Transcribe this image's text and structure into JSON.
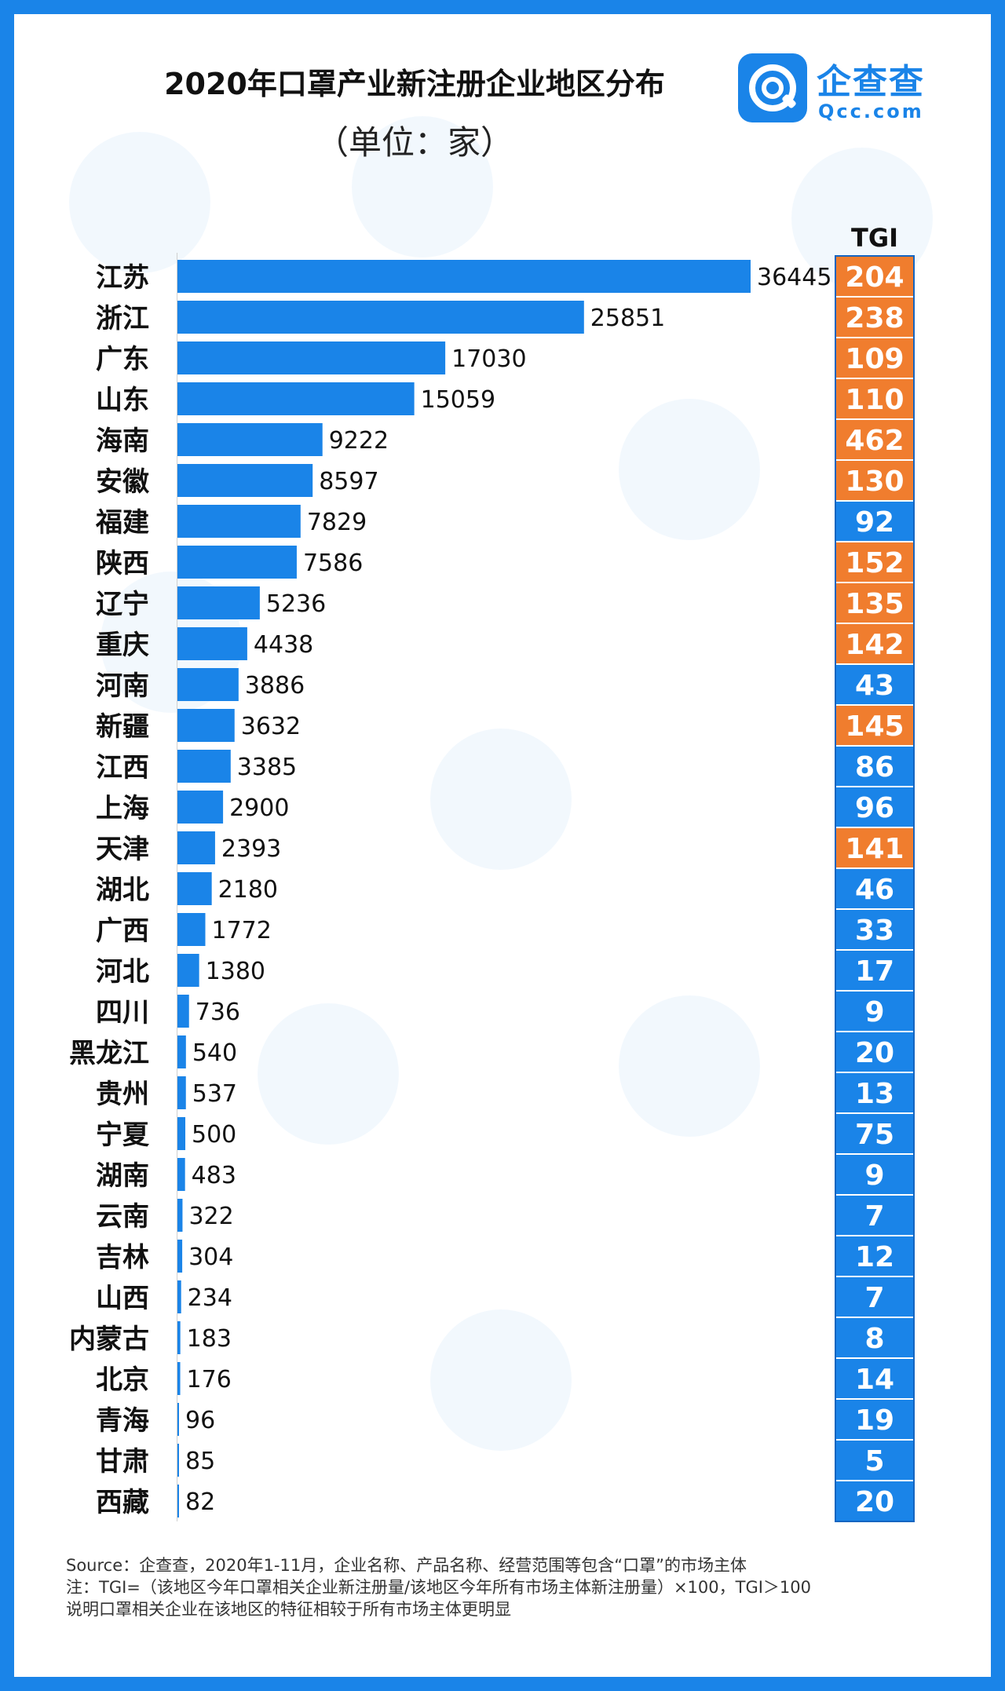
{
  "title": "2020年口罩产业新注册企业地区分布",
  "subtitle": "（单位：家）",
  "logo": {
    "cn": "企查查",
    "en": "Qcc.com",
    "icon": "qcc-logo-icon",
    "color": "#1a84e8"
  },
  "tgi_header": "TGI",
  "colors": {
    "bar": "#1a84e8",
    "tgi_high": "#f07d2e",
    "tgi_low": "#1a84e8",
    "border": "#1a84e8"
  },
  "chart_data": {
    "type": "bar",
    "orientation": "horizontal",
    "title": "2020年口罩产业新注册企业地区分布",
    "subtitle": "（单位：家）",
    "categories": [
      "江苏",
      "浙江",
      "广东",
      "山东",
      "海南",
      "安徽",
      "福建",
      "陕西",
      "辽宁",
      "重庆",
      "河南",
      "新疆",
      "江西",
      "上海",
      "天津",
      "湖北",
      "广西",
      "河北",
      "四川",
      "黑龙江",
      "贵州",
      "宁夏",
      "湖南",
      "云南",
      "吉林",
      "山西",
      "内蒙古",
      "北京",
      "青海",
      "甘肃",
      "西藏"
    ],
    "values": [
      36445,
      25851,
      17030,
      15059,
      9222,
      8597,
      7829,
      7586,
      5236,
      4438,
      3886,
      3632,
      3385,
      2900,
      2393,
      2180,
      1772,
      1380,
      736,
      540,
      537,
      500,
      483,
      322,
      304,
      234,
      183,
      176,
      96,
      85,
      82
    ],
    "tgi": [
      204,
      238,
      109,
      110,
      462,
      130,
      92,
      152,
      135,
      142,
      43,
      145,
      86,
      96,
      141,
      46,
      33,
      17,
      9,
      20,
      13,
      75,
      9,
      7,
      12,
      7,
      8,
      14,
      19,
      5,
      20
    ],
    "tgi_threshold": 100,
    "xlim": [
      0,
      36445
    ],
    "grid": false,
    "legend": "none"
  },
  "footnotes": {
    "source": "Source：企查查，2020年1-11月，企业名称、产品名称、经营范围等包含“口罩”的市场主体",
    "note1": "注：TGI=（该地区今年口罩相关企业新注册量/该地区今年所有市场主体新注册量）×100，TGI＞100",
    "note2": "说明口罩相关企业在该地区的特征相较于所有市场主体更明显"
  }
}
